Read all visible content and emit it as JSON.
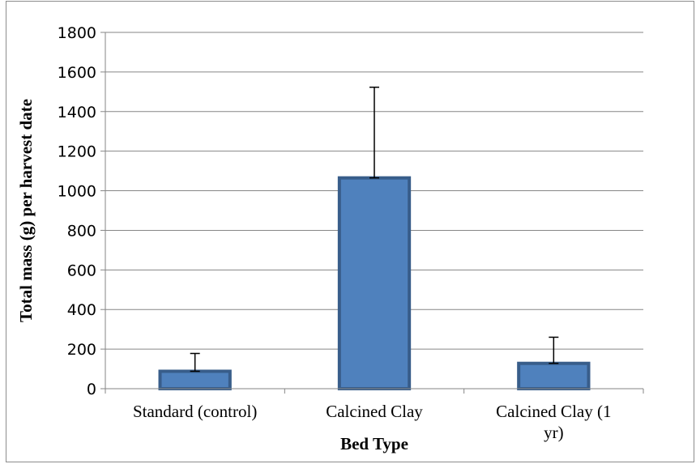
{
  "chart_data": {
    "type": "bar",
    "title": "",
    "xlabel": "Bed Type",
    "ylabel": "Total mass (g) per harvest date",
    "categories": [
      "Standard (control)",
      "Calcined Clay",
      "Calcined Clay (1 yr)"
    ],
    "category_lines": [
      [
        "Standard (control)"
      ],
      [
        "Calcined Clay"
      ],
      [
        "Calcined Clay (1",
        "yr)"
      ]
    ],
    "values": [
      88,
      1065,
      128
    ],
    "error_plus": [
      90,
      458,
      132
    ],
    "ylim": [
      0,
      1800
    ],
    "yticks": [
      0,
      200,
      400,
      600,
      800,
      1000,
      1200,
      1400,
      1600,
      1800
    ],
    "grid": true,
    "legend": "none",
    "bar_fill": "#4f81bd",
    "bar_stroke": "#385d8a",
    "grid_color": "#868686"
  }
}
